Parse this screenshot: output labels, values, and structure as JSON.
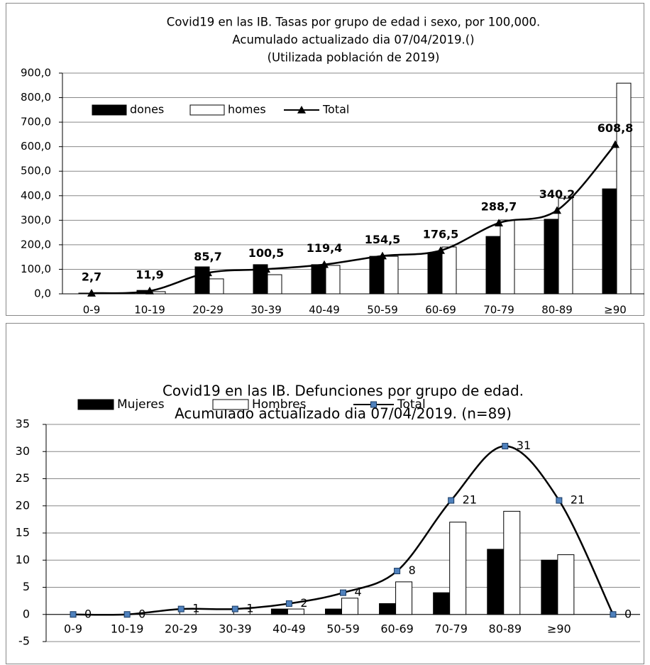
{
  "chart_data": [
    {
      "type": "bar",
      "title": [
        "Covid19 en las IB.  Tasas por grupo de edad i sexo, por 100,000.",
        "Acumulado actualizado dia 07/04/2019.()",
        "(Utilizada población de 2019)"
      ],
      "categories": [
        "0-9",
        "10-19",
        "20-29",
        "30-39",
        "40-49",
        "50-59",
        "60-69",
        "70-79",
        "80-89",
        "≥90"
      ],
      "series": [
        {
          "name": "dones",
          "type": "bar",
          "color": "#000000",
          "values": [
            3,
            14,
            110,
            119,
            119,
            153,
            168,
            234,
            304,
            428
          ]
        },
        {
          "name": "homes",
          "type": "bar",
          "color": "#ffffff",
          "values": [
            2,
            9,
            61,
            78,
            116,
            153,
            191,
            301,
            390,
            859
          ]
        },
        {
          "name": "Total",
          "type": "line",
          "color": "#000000",
          "marker": "triangle",
          "values": [
            2.7,
            11.9,
            85.7,
            100.5,
            119.4,
            154.5,
            176.5,
            288.7,
            340.2,
            608.8
          ],
          "value_labels": [
            "2,7",
            "11,9",
            "85,7",
            "100,5",
            "119,4",
            "154,5",
            "176,5",
            "288,7",
            "340,2",
            "608,8"
          ]
        }
      ],
      "ylim": [
        0,
        900
      ],
      "yticks": [
        {
          "value": 0,
          "label": "0,0"
        },
        {
          "value": 100,
          "label": "100,0"
        },
        {
          "value": 200,
          "label": "200,0"
        },
        {
          "value": 300,
          "label": "300,0"
        },
        {
          "value": 400,
          "label": "400,0"
        },
        {
          "value": 500,
          "label": "500,0"
        },
        {
          "value": 600,
          "label": "600,0"
        },
        {
          "value": 700,
          "label": "700,0"
        },
        {
          "value": 800,
          "label": "800,0"
        },
        {
          "value": 900,
          "label": "900,0"
        }
      ],
      "grid": true
    },
    {
      "type": "bar",
      "title": [
        "Covid19 en las IB.  Defunciones por grupo de edad.",
        "Acumulado  actualizado  dia  07/04/2019.  (n=89)"
      ],
      "categories": [
        "0-9",
        "10-19",
        "20-29",
        "30-39",
        "40-49",
        "50-59",
        "60-69",
        "70-79",
        "80-89",
        "≥90",
        null
      ],
      "series": [
        {
          "name": "Mujeres",
          "type": "bar",
          "color": "#000000",
          "values": [
            0,
            0,
            0,
            0,
            1,
            1,
            2,
            4,
            12,
            10,
            null
          ]
        },
        {
          "name": "Hombres",
          "type": "bar",
          "color": "#ffffff",
          "values": [
            0,
            0,
            1,
            1,
            1,
            3,
            6,
            17,
            19,
            11,
            null
          ]
        },
        {
          "name": "Total",
          "type": "line",
          "color": "#000000",
          "marker": "square",
          "marker_color": "#4f81bd",
          "values": [
            0,
            0,
            1,
            1,
            2,
            4,
            8,
            21,
            31,
            21,
            0
          ]
        }
      ],
      "ylim": [
        -5,
        35
      ],
      "yticks": [
        -5,
        0,
        5,
        10,
        15,
        20,
        25,
        30,
        35
      ],
      "grid": true
    }
  ]
}
